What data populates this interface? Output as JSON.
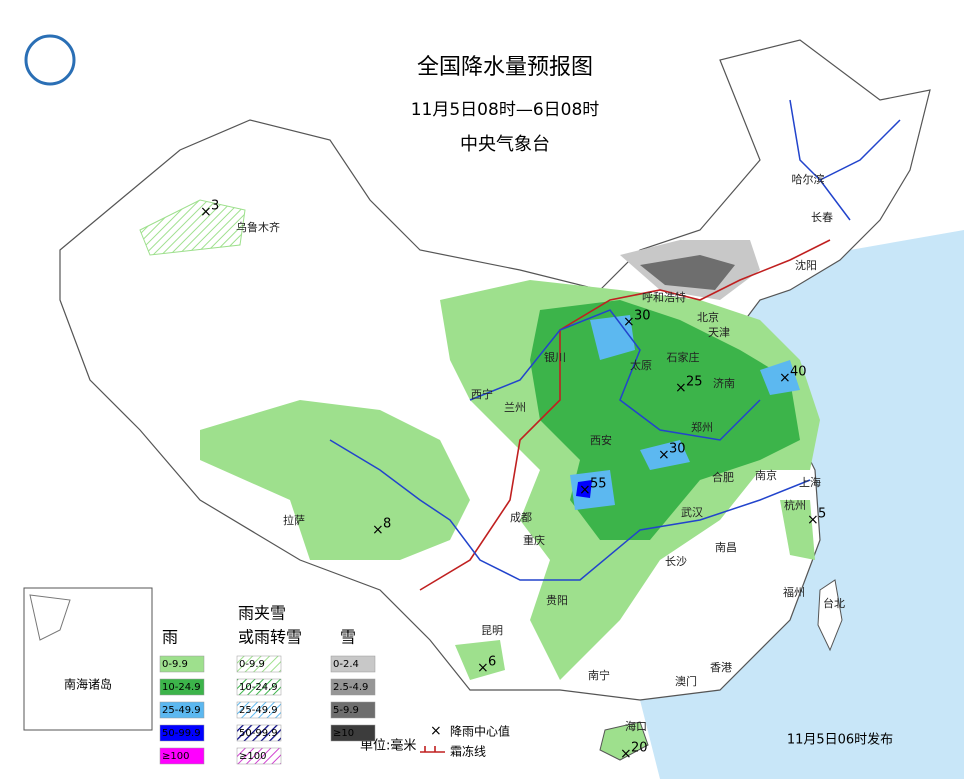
{
  "header": {
    "title": "全国降水量预报图",
    "subtitle": "11月5日08时—6日08时",
    "issuer": "中央气象台"
  },
  "cities": [
    "乌鲁木齐",
    "哈尔滨",
    "长春",
    "沈阳",
    "呼和浩特",
    "北京",
    "天津",
    "银川",
    "石家庄",
    "太原",
    "西宁",
    "兰州",
    "济南",
    "郑州",
    "西安",
    "合肥",
    "南京",
    "上海",
    "成都",
    "武汉",
    "杭州",
    "拉萨",
    "重庆",
    "南昌",
    "长沙",
    "福州",
    "贵阳",
    "台北",
    "昆明",
    "南宁",
    "香港",
    "澳门",
    "海口"
  ],
  "centers": [
    3,
    30,
    25,
    40,
    30,
    55,
    8,
    5,
    6,
    20
  ],
  "inset": "南海诸岛",
  "legend": {
    "rain": {
      "title": "雨",
      "items": [
        "0-9.9",
        "10-24.9",
        "25-49.9",
        "50-99.9",
        "≥100"
      ]
    },
    "mixed": {
      "title": [
        "雨夹雪",
        "或雨转雪"
      ],
      "items": [
        "0-9.9",
        "10-24.9",
        "25-49.9",
        "50-99.9",
        "≥100"
      ]
    },
    "snow": {
      "title": "雪",
      "items": [
        "0-2.4",
        "2.5-4.9",
        "5-9.9",
        "≥10"
      ]
    },
    "notes": [
      "降雨中心值",
      "霜冻线"
    ],
    "unit": "单位:毫米"
  },
  "issued": "11月5日06时发布"
}
